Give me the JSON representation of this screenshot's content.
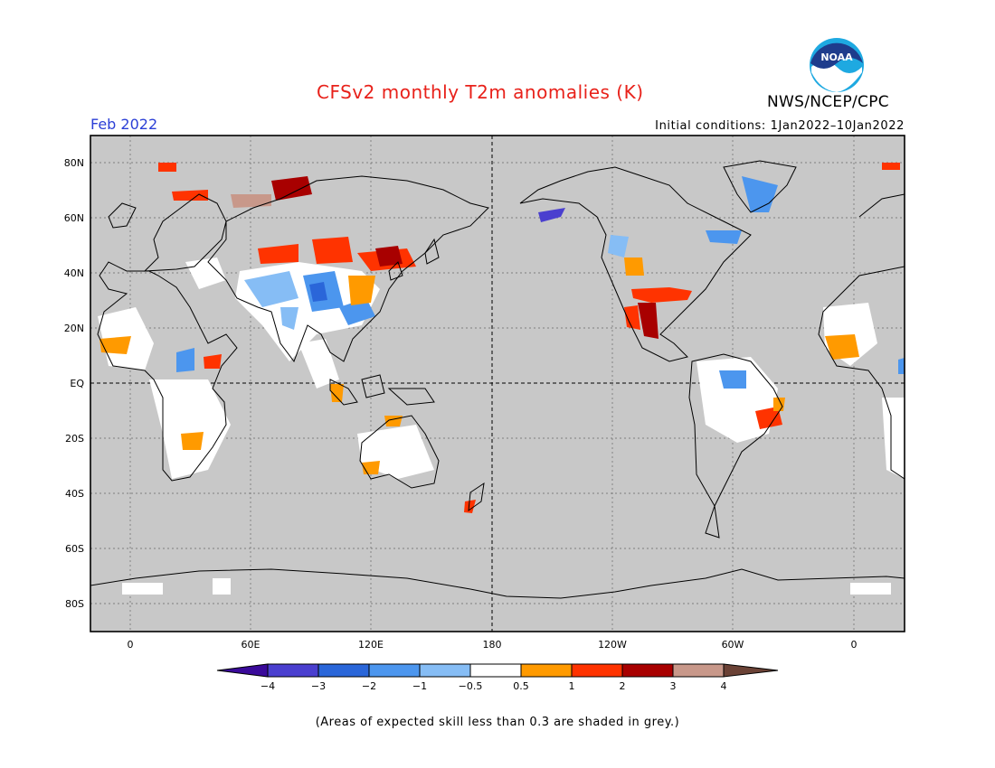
{
  "header": {
    "title": "CFSv2 monthly T2m anomalies (K)",
    "month": "Feb 2022",
    "initial_conditions": "Initial conditions: 1Jan2022–10Jan2022",
    "agency": "NWS/NCEP/CPC",
    "logo_text": "NOAA"
  },
  "map": {
    "background_color": "#c8c8c8",
    "lat_labels": [
      "80N",
      "60N",
      "40N",
      "20N",
      "EQ",
      "20S",
      "40S",
      "60S",
      "80S"
    ],
    "lon_labels": [
      "0",
      "60E",
      "120E",
      "180",
      "120W",
      "60W",
      "0"
    ]
  },
  "colorbar": {
    "ticks": [
      "−4",
      "−3",
      "−2",
      "−1",
      "−0.5",
      "0.5",
      "1",
      "2",
      "3",
      "4"
    ],
    "colors": [
      "#3a0a9a",
      "#4a3fcf",
      "#2a66d9",
      "#4c96ee",
      "#86bdf5",
      "#ffffff",
      "#ff9a00",
      "#ff3300",
      "#a80000",
      "#c8988a",
      "#6b4236"
    ]
  },
  "footnote": "(Areas of expected skill less than 0.3 are shaded in grey.)"
}
